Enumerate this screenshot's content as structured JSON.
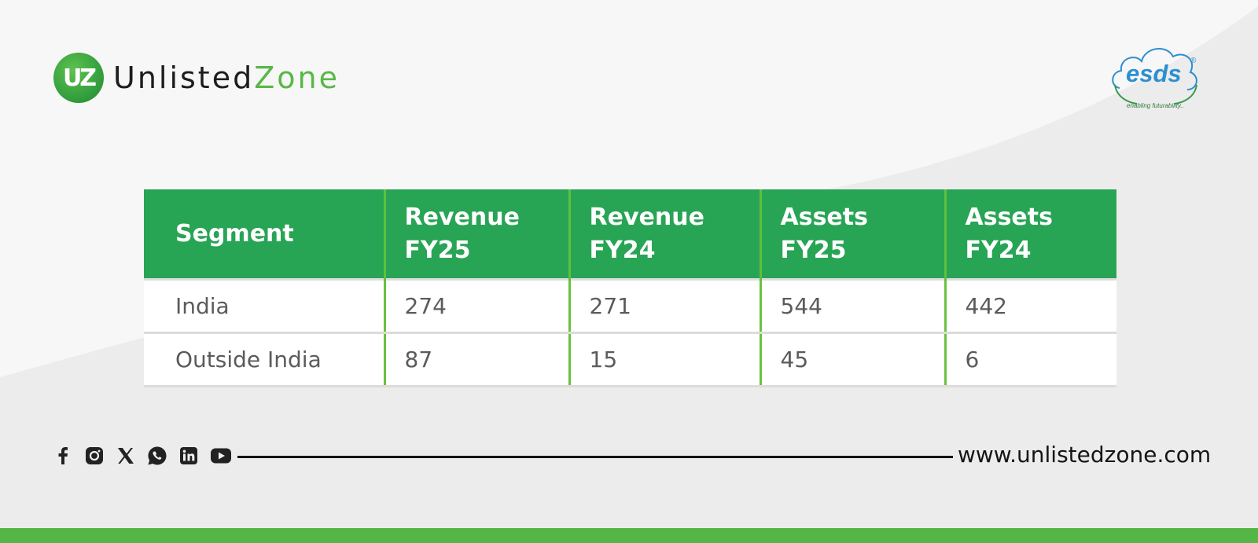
{
  "brand": {
    "badge": "UZ",
    "name_part1": "Unlisted",
    "name_part2": "Zone"
  },
  "partner_logo": {
    "wordmark": "esds",
    "registered": "®",
    "tagline": "enabling futurability.."
  },
  "table": {
    "headers": [
      {
        "line1": "Segment",
        "line2": ""
      },
      {
        "line1": "Revenue",
        "line2": "FY25"
      },
      {
        "line1": "Revenue",
        "line2": "FY24"
      },
      {
        "line1": "Assets",
        "line2": "FY25"
      },
      {
        "line1": "Assets",
        "line2": "FY24"
      }
    ],
    "rows": [
      [
        "India",
        "274",
        "271",
        "544",
        "442"
      ],
      [
        "Outside India",
        "87",
        "15",
        "45",
        "6"
      ]
    ]
  },
  "footer": {
    "social_icons": [
      "facebook-icon",
      "instagram-icon",
      "x-icon",
      "whatsapp-icon",
      "linkedin-icon",
      "youtube-icon"
    ],
    "url": "www.unlistedzone.com"
  },
  "colors": {
    "header_green": "#28a455",
    "brand_green": "#58b847",
    "bottom_bar": "#55b646",
    "divider_green": "#69c23e",
    "esds_blue": "#2c8fcf"
  }
}
